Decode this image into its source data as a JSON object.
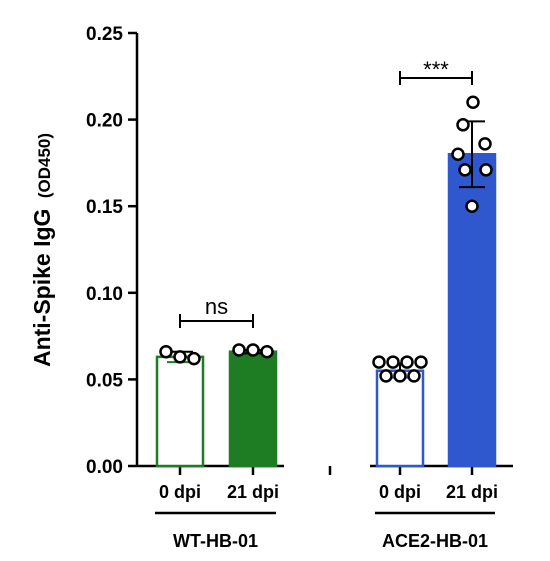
{
  "chart_data": {
    "type": "bar",
    "ylabel": "Anti-Spike IgG",
    "ylabel_unit": "(OD450)",
    "ylim": [
      0,
      0.25
    ],
    "yticks": [
      "0.00",
      "0.05",
      "0.10",
      "0.15",
      "0.20",
      "0.25"
    ],
    "yticks_values": [
      0,
      0.05,
      0.1,
      0.15,
      0.2,
      0.25
    ],
    "groups": [
      {
        "label": "WT-HB-01",
        "color": "#1e7d22",
        "bars": [
          {
            "category": "0 dpi",
            "value": 0.063,
            "error": 0.003,
            "filled": false,
            "points": [
              0.066,
              0.063,
              0.062
            ]
          },
          {
            "category": "21 dpi",
            "value": 0.066,
            "error": 0.001,
            "filled": true,
            "points": [
              0.067,
              0.067,
              0.066
            ]
          }
        ],
        "significance": "ns"
      },
      {
        "label": "ACE2-HB-01",
        "color": "#2f58cf",
        "bars": [
          {
            "category": "0 dpi",
            "value": 0.055,
            "error": 0.004,
            "filled": false,
            "points": [
              0.06,
              0.06,
              0.06,
              0.06,
              0.052,
              0.052,
              0.052
            ]
          },
          {
            "category": "21 dpi",
            "value": 0.18,
            "error": 0.019,
            "filled": true,
            "points": [
              0.21,
              0.197,
              0.186,
              0.18,
              0.171,
              0.171,
              0.15
            ]
          }
        ],
        "significance": "***"
      }
    ],
    "grid": false,
    "legend": "none"
  }
}
